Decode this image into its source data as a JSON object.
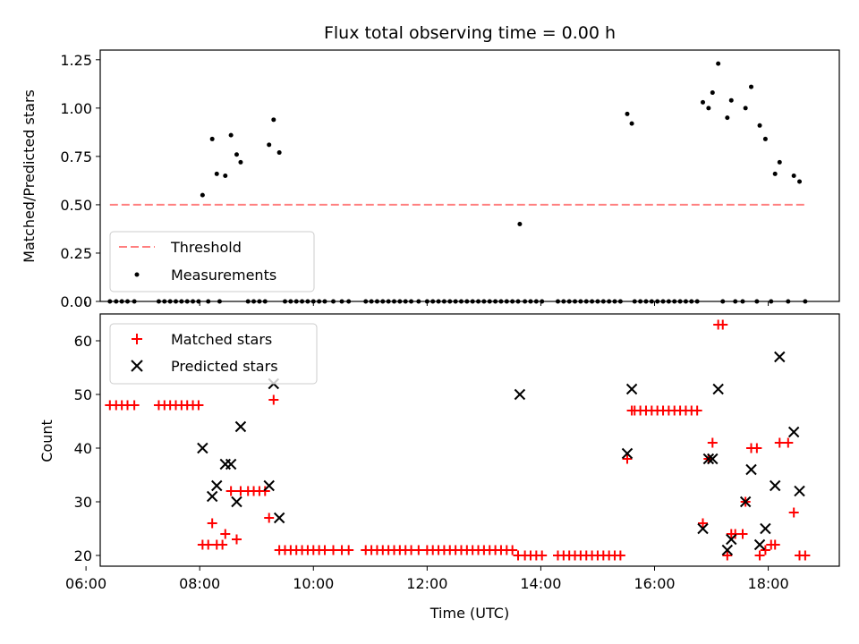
{
  "title": "Flux total observing time = 0.00 h",
  "colors": {
    "threshold": "#ff7f7f",
    "measurement": "#000000",
    "matched": "#ff0000",
    "predicted": "#000000"
  },
  "chart_data": [
    {
      "type": "scatter",
      "ylabel": "Matched/Predicted stars",
      "ylim": [
        0,
        1.3
      ],
      "xlim": [
        6.25,
        19.25
      ],
      "yticks": [
        "0.00",
        "0.25",
        "0.50",
        "0.75",
        "1.00",
        "1.25"
      ],
      "ytick_values": [
        0,
        0.25,
        0.5,
        0.75,
        1.0,
        1.25
      ],
      "legend": {
        "placement": "lower-left",
        "entries": [
          "Threshold",
          "Measurements"
        ]
      },
      "threshold": {
        "name": "Threshold",
        "y": 0.5,
        "x_range": [
          6.42,
          18.65
        ]
      },
      "measurements": {
        "name": "Measurements",
        "points": [
          [
            6.42,
            0
          ],
          [
            6.53,
            0
          ],
          [
            6.63,
            0
          ],
          [
            6.73,
            0
          ],
          [
            6.85,
            0
          ],
          [
            7.28,
            0
          ],
          [
            7.38,
            0
          ],
          [
            7.48,
            0
          ],
          [
            7.58,
            0
          ],
          [
            7.68,
            0
          ],
          [
            7.78,
            0
          ],
          [
            7.88,
            0
          ],
          [
            7.98,
            0
          ],
          [
            8.05,
            0.55
          ],
          [
            8.22,
            0.84
          ],
          [
            8.3,
            0.66
          ],
          [
            8.45,
            0.65
          ],
          [
            8.55,
            0.86
          ],
          [
            8.65,
            0.76
          ],
          [
            8.72,
            0.72
          ],
          [
            8.15,
            0
          ],
          [
            8.35,
            0
          ],
          [
            8.85,
            0
          ],
          [
            8.95,
            0
          ],
          [
            9.05,
            0
          ],
          [
            9.15,
            0
          ],
          [
            9.22,
            0.81
          ],
          [
            9.3,
            0.94
          ],
          [
            9.4,
            0.77
          ],
          [
            9.5,
            0
          ],
          [
            9.6,
            0
          ],
          [
            9.7,
            0
          ],
          [
            9.8,
            0
          ],
          [
            9.9,
            0
          ],
          [
            10.0,
            0
          ],
          [
            10.1,
            0
          ],
          [
            10.2,
            0
          ],
          [
            10.35,
            0
          ],
          [
            10.5,
            0
          ],
          [
            10.62,
            0
          ],
          [
            10.92,
            0
          ],
          [
            11.02,
            0
          ],
          [
            11.12,
            0
          ],
          [
            11.22,
            0
          ],
          [
            11.32,
            0
          ],
          [
            11.42,
            0
          ],
          [
            11.52,
            0
          ],
          [
            11.62,
            0
          ],
          [
            11.72,
            0
          ],
          [
            11.85,
            0
          ],
          [
            12.0,
            0
          ],
          [
            12.1,
            0
          ],
          [
            12.2,
            0
          ],
          [
            12.3,
            0
          ],
          [
            12.4,
            0
          ],
          [
            12.5,
            0
          ],
          [
            12.6,
            0
          ],
          [
            12.7,
            0
          ],
          [
            12.8,
            0
          ],
          [
            12.9,
            0
          ],
          [
            13.0,
            0
          ],
          [
            13.1,
            0
          ],
          [
            13.2,
            0
          ],
          [
            13.3,
            0
          ],
          [
            13.4,
            0
          ],
          [
            13.5,
            0
          ],
          [
            13.6,
            0
          ],
          [
            13.63,
            0.4
          ],
          [
            13.72,
            0
          ],
          [
            13.82,
            0
          ],
          [
            13.92,
            0
          ],
          [
            14.02,
            0
          ],
          [
            14.3,
            0
          ],
          [
            14.4,
            0
          ],
          [
            14.5,
            0
          ],
          [
            14.6,
            0
          ],
          [
            14.7,
            0
          ],
          [
            14.8,
            0
          ],
          [
            14.9,
            0
          ],
          [
            15.0,
            0
          ],
          [
            15.1,
            0
          ],
          [
            15.2,
            0
          ],
          [
            15.3,
            0
          ],
          [
            15.4,
            0
          ],
          [
            15.52,
            0.97
          ],
          [
            15.6,
            0.92
          ],
          [
            15.65,
            0
          ],
          [
            15.75,
            0
          ],
          [
            15.85,
            0
          ],
          [
            15.95,
            0
          ],
          [
            16.05,
            0
          ],
          [
            16.15,
            0
          ],
          [
            16.25,
            0
          ],
          [
            16.35,
            0
          ],
          [
            16.45,
            0
          ],
          [
            16.55,
            0
          ],
          [
            16.65,
            0
          ],
          [
            16.75,
            0
          ],
          [
            16.85,
            1.03
          ],
          [
            16.95,
            1.0
          ],
          [
            17.02,
            1.08
          ],
          [
            17.12,
            1.23
          ],
          [
            17.28,
            0.95
          ],
          [
            17.35,
            1.04
          ],
          [
            17.6,
            1.0
          ],
          [
            17.7,
            1.11
          ],
          [
            17.85,
            0.91
          ],
          [
            17.95,
            0.84
          ],
          [
            18.12,
            0.66
          ],
          [
            18.2,
            0.72
          ],
          [
            18.45,
            0.65
          ],
          [
            18.55,
            0.62
          ],
          [
            17.2,
            0
          ],
          [
            17.42,
            0
          ],
          [
            17.55,
            0
          ],
          [
            17.8,
            0
          ],
          [
            18.05,
            0
          ],
          [
            18.35,
            0
          ],
          [
            18.65,
            0
          ]
        ]
      }
    },
    {
      "type": "scatter",
      "xlabel": "Time (UTC)",
      "ylabel": "Count",
      "ylim": [
        18,
        65
      ],
      "xlim": [
        6.25,
        19.25
      ],
      "yticks": [
        "20",
        "30",
        "40",
        "50",
        "60"
      ],
      "ytick_values": [
        20,
        30,
        40,
        50,
        60
      ],
      "xticks": [
        "06:00",
        "08:00",
        "10:00",
        "12:00",
        "14:00",
        "16:00",
        "18:00"
      ],
      "xtick_values": [
        6,
        8,
        10,
        12,
        14,
        16,
        18
      ],
      "legend": {
        "placement": "top-left",
        "entries": [
          "Matched stars",
          "Predicted stars"
        ]
      },
      "series": [
        {
          "name": "Matched stars",
          "points": [
            [
              6.42,
              48
            ],
            [
              6.53,
              48
            ],
            [
              6.63,
              48
            ],
            [
              6.73,
              48
            ],
            [
              6.85,
              48
            ],
            [
              7.28,
              48
            ],
            [
              7.38,
              48
            ],
            [
              7.48,
              48
            ],
            [
              7.58,
              48
            ],
            [
              7.68,
              48
            ],
            [
              7.78,
              48
            ],
            [
              7.88,
              48
            ],
            [
              7.98,
              48
            ],
            [
              8.05,
              22
            ],
            [
              8.15,
              22
            ],
            [
              8.22,
              26
            ],
            [
              8.3,
              22
            ],
            [
              8.4,
              22
            ],
            [
              8.45,
              24
            ],
            [
              8.55,
              32
            ],
            [
              8.65,
              23
            ],
            [
              8.72,
              32
            ],
            [
              8.85,
              32
            ],
            [
              8.95,
              32
            ],
            [
              9.05,
              32
            ],
            [
              9.15,
              32
            ],
            [
              9.22,
              27
            ],
            [
              9.3,
              49
            ],
            [
              9.4,
              21
            ],
            [
              9.5,
              21
            ],
            [
              9.6,
              21
            ],
            [
              9.7,
              21
            ],
            [
              9.8,
              21
            ],
            [
              9.9,
              21
            ],
            [
              10.0,
              21
            ],
            [
              10.1,
              21
            ],
            [
              10.2,
              21
            ],
            [
              10.35,
              21
            ],
            [
              10.5,
              21
            ],
            [
              10.62,
              21
            ],
            [
              10.92,
              21
            ],
            [
              11.02,
              21
            ],
            [
              11.12,
              21
            ],
            [
              11.22,
              21
            ],
            [
              11.32,
              21
            ],
            [
              11.42,
              21
            ],
            [
              11.52,
              21
            ],
            [
              11.62,
              21
            ],
            [
              11.72,
              21
            ],
            [
              11.85,
              21
            ],
            [
              12.0,
              21
            ],
            [
              12.1,
              21
            ],
            [
              12.2,
              21
            ],
            [
              12.3,
              21
            ],
            [
              12.4,
              21
            ],
            [
              12.5,
              21
            ],
            [
              12.6,
              21
            ],
            [
              12.7,
              21
            ],
            [
              12.8,
              21
            ],
            [
              12.9,
              21
            ],
            [
              13.0,
              21
            ],
            [
              13.1,
              21
            ],
            [
              13.2,
              21
            ],
            [
              13.3,
              21
            ],
            [
              13.4,
              21
            ],
            [
              13.5,
              21
            ],
            [
              13.6,
              20
            ],
            [
              13.72,
              20
            ],
            [
              13.82,
              20
            ],
            [
              13.92,
              20
            ],
            [
              14.02,
              20
            ],
            [
              14.3,
              20
            ],
            [
              14.4,
              20
            ],
            [
              14.5,
              20
            ],
            [
              14.6,
              20
            ],
            [
              14.7,
              20
            ],
            [
              14.8,
              20
            ],
            [
              14.9,
              20
            ],
            [
              15.0,
              20
            ],
            [
              15.1,
              20
            ],
            [
              15.2,
              20
            ],
            [
              15.3,
              20
            ],
            [
              15.4,
              20
            ],
            [
              15.52,
              38
            ],
            [
              15.6,
              47
            ],
            [
              15.65,
              47
            ],
            [
              15.75,
              47
            ],
            [
              15.85,
              47
            ],
            [
              15.95,
              47
            ],
            [
              16.05,
              47
            ],
            [
              16.15,
              47
            ],
            [
              16.25,
              47
            ],
            [
              16.35,
              47
            ],
            [
              16.45,
              47
            ],
            [
              16.55,
              47
            ],
            [
              16.65,
              47
            ],
            [
              16.75,
              47
            ],
            [
              16.85,
              26
            ],
            [
              16.95,
              38
            ],
            [
              17.02,
              41
            ],
            [
              17.12,
              63
            ],
            [
              17.2,
              63
            ],
            [
              17.28,
              20
            ],
            [
              17.35,
              24
            ],
            [
              17.42,
              24
            ],
            [
              17.55,
              24
            ],
            [
              17.6,
              30
            ],
            [
              17.7,
              40
            ],
            [
              17.8,
              40
            ],
            [
              17.85,
              20
            ],
            [
              17.95,
              21
            ],
            [
              18.05,
              22
            ],
            [
              18.12,
              22
            ],
            [
              18.2,
              41
            ],
            [
              18.35,
              41
            ],
            [
              18.45,
              28
            ],
            [
              18.55,
              20
            ],
            [
              18.65,
              20
            ]
          ]
        },
        {
          "name": "Predicted stars",
          "points": [
            [
              8.05,
              40
            ],
            [
              8.22,
              31
            ],
            [
              8.3,
              33
            ],
            [
              8.45,
              37
            ],
            [
              8.55,
              37
            ],
            [
              8.65,
              30
            ],
            [
              8.72,
              44
            ],
            [
              9.22,
              33
            ],
            [
              9.3,
              52
            ],
            [
              9.4,
              27
            ],
            [
              13.63,
              50
            ],
            [
              15.52,
              39
            ],
            [
              15.6,
              51
            ],
            [
              16.85,
              25
            ],
            [
              16.95,
              38
            ],
            [
              17.02,
              38
            ],
            [
              17.12,
              51
            ],
            [
              17.28,
              21
            ],
            [
              17.35,
              23
            ],
            [
              17.6,
              30
            ],
            [
              17.7,
              36
            ],
            [
              17.85,
              22
            ],
            [
              17.95,
              25
            ],
            [
              18.12,
              33
            ],
            [
              18.2,
              57
            ],
            [
              18.45,
              43
            ],
            [
              18.55,
              32
            ]
          ]
        }
      ]
    }
  ]
}
